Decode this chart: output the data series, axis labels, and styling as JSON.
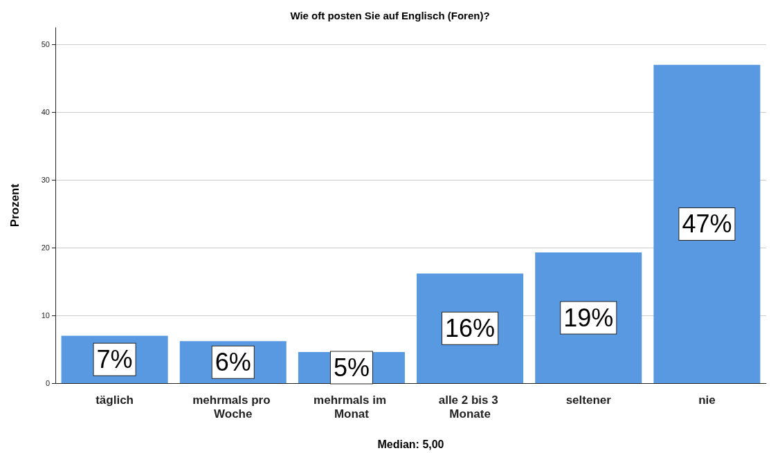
{
  "chart_data": {
    "type": "bar",
    "title": "Wie oft posten Sie auf Englisch (Foren)?",
    "xlabel": "Median: 5,00",
    "ylabel": "Prozent",
    "categories": [
      "täglich",
      "mehrmals pro Woche",
      "mehrmals im Monat",
      "alle 2 bis 3 Monate",
      "seltener",
      "nie"
    ],
    "values": [
      7.0,
      6.2,
      4.6,
      16.2,
      19.3,
      47.0
    ],
    "value_labels": [
      "7%",
      "6%",
      "5%",
      "16%",
      "19%",
      "47%"
    ],
    "color": "#5899e2",
    "ylim": [
      0,
      52.5
    ],
    "yticks": [
      0,
      10,
      20,
      30,
      40,
      50
    ],
    "grid": "y"
  }
}
